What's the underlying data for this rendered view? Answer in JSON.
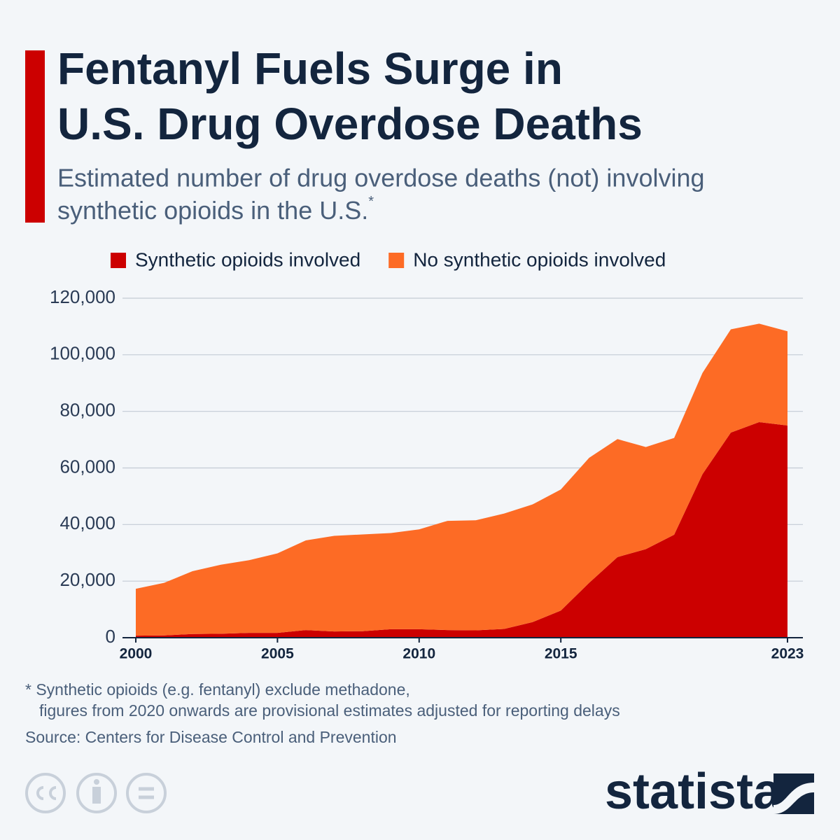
{
  "chart_data": {
    "type": "stacked_area",
    "title": [
      "Fentanyl Fuels Surge in",
      "U.S. Drug Overdose Deaths"
    ],
    "subtitle": [
      "Estimated number of drug overdose deaths (not) involving",
      "synthetic opioids in the U.S."
    ],
    "subtitle_marker": "*",
    "x": [
      2000,
      2001,
      2002,
      2003,
      2004,
      2005,
      2006,
      2007,
      2008,
      2009,
      2010,
      2011,
      2012,
      2013,
      2014,
      2015,
      2016,
      2017,
      2018,
      2019,
      2020,
      2021,
      2022,
      2023
    ],
    "series": [
      {
        "name": "Synthetic opioids involved",
        "color": "#cc0000",
        "values": [
          700,
          800,
          1300,
          1400,
          1700,
          1700,
          2700,
          2200,
          2300,
          3000,
          3000,
          2700,
          2600,
          3100,
          5500,
          9600,
          19400,
          28500,
          31300,
          36400,
          57800,
          72500,
          76200,
          75000
        ]
      },
      {
        "name": "No synthetic opioids involved",
        "color": "#fd6b25",
        "values": [
          16600,
          18600,
          22200,
          24400,
          25700,
          28100,
          31700,
          33800,
          34200,
          34000,
          35300,
          38600,
          38900,
          40800,
          41600,
          42800,
          44200,
          41700,
          36100,
          34200,
          35800,
          36500,
          34800,
          33300
        ]
      }
    ],
    "xlim": [
      2000,
      2023
    ],
    "xticks": [
      2000,
      2005,
      2010,
      2015,
      2023
    ],
    "ylim": [
      0,
      120000
    ],
    "yticks": [
      0,
      {
        "value": 20000,
        "label": "20,000"
      },
      {
        "value": 40000,
        "label": "40,000"
      },
      {
        "value": 60000,
        "label": "60,000"
      },
      {
        "value": 80000,
        "label": "80,000"
      },
      {
        "value": 100000,
        "label": "100,000"
      },
      {
        "value": 120000,
        "label": "120,000"
      }
    ],
    "grid": true,
    "notes": [
      "* Synthetic opioids (e.g. fentanyl) exclude methadone,",
      "figures from 2020 onwards are provisional estimates adjusted for reporting delays"
    ],
    "source": "Source: Centers for Disease Control and Prevention",
    "brand": "statista"
  }
}
